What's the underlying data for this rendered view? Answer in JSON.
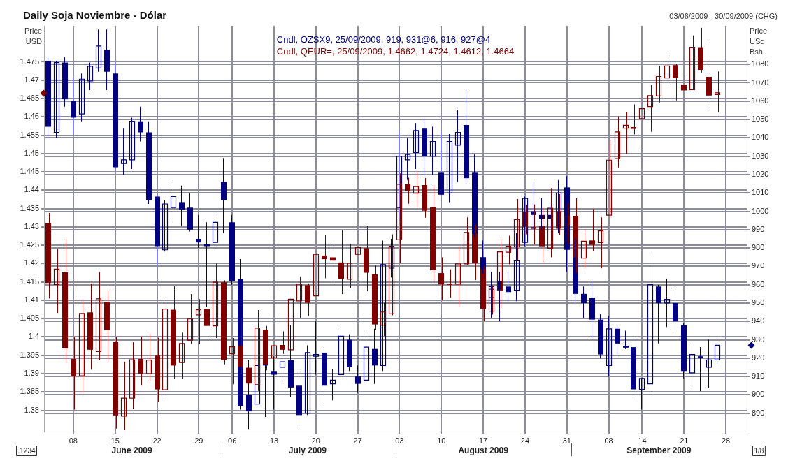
{
  "chart_data": {
    "type": "candlestick",
    "title": "Daily Soja Noviembre - Dólar",
    "subtitle": "03/06/2009 - 30/09/2009 (CHG)",
    "ylabel": "Price USD",
    "y2label": "Price USc Bsh",
    "categories": [
      null,
      null,
      null,
      "08",
      null,
      null,
      null,
      null,
      "15",
      null,
      null,
      null,
      null,
      "22",
      null,
      null,
      null,
      null,
      "29",
      null,
      null,
      null,
      "06",
      null,
      null,
      null,
      null,
      "13",
      null,
      null,
      null,
      null,
      "20",
      null,
      null,
      null,
      null,
      "27",
      null,
      null,
      null,
      null,
      "03",
      null,
      null,
      null,
      null,
      "10",
      null,
      null,
      null,
      null,
      "17",
      null,
      null,
      null,
      null,
      "24",
      null,
      null,
      null,
      null,
      "31",
      null,
      null,
      null,
      null,
      "08",
      null,
      null,
      null,
      "14",
      null,
      null,
      null,
      null,
      "21",
      null,
      null,
      null,
      null,
      "28",
      null,
      null
    ],
    "series": [
      {
        "name": "Cndl, OZSX9, 25/09/2009, 919, 931@6, 916, 927@4",
        "color": "#000080",
        "axis": "y2",
        "ohlc": [
          [
            1082,
            1084,
            1040,
            1046
          ],
          [
            1043,
            1082,
            1040,
            1081
          ],
          [
            1081,
            1084,
            1057,
            1061
          ],
          [
            1060,
            1073,
            1042,
            1051
          ],
          [
            1053,
            1075,
            1049,
            1072
          ],
          [
            1071,
            1081,
            1066,
            1079
          ],
          [
            1078,
            1099,
            1076,
            1090
          ],
          [
            1088,
            1099,
            1066,
            1076
          ],
          [
            1075,
            1081,
            1023,
            1024
          ],
          [
            1026,
            1045,
            1020,
            1028
          ],
          [
            1028,
            1051,
            1023,
            1049
          ],
          [
            1049,
            1057,
            1038,
            1043
          ],
          [
            1043,
            1049,
            1004,
            1006
          ],
          [
            1008,
            1009,
            970,
            981
          ],
          [
            979,
            1006,
            978,
            1004
          ],
          [
            1002,
            1017,
            995,
            1008
          ],
          [
            1005,
            1014,
            992,
            1001
          ],
          [
            1002,
            1010,
            989,
            990
          ],
          [
            985,
            998,
            980,
            983
          ],
          [
            982,
            994,
            948,
            981
          ],
          [
            983,
            997,
            981,
            994
          ],
          [
            1016,
            1029,
            988,
            1006
          ],
          [
            994,
            998,
            960,
            962
          ],
          [
            963,
            974,
            892,
            894
          ],
          [
            900,
            919,
            881,
            891
          ],
          [
            895,
            918,
            893,
            916
          ],
          [
            917,
            934,
            888,
            916
          ],
          [
            913,
            921,
            892,
            911
          ],
          [
            915,
            922,
            906,
            918
          ],
          [
            919,
            938,
            899,
            904
          ],
          [
            905,
            913,
            882,
            889
          ],
          [
            890,
            927,
            889,
            923
          ],
          [
            921,
            940,
            911,
            922
          ],
          [
            923,
            926,
            895,
            905
          ],
          [
            906,
            914,
            897,
            908
          ],
          [
            911,
            936,
            910,
            932
          ],
          [
            930,
            933,
            913,
            915
          ],
          [
            910,
            916,
            901,
            906
          ],
          [
            908,
            933,
            906,
            926
          ],
          [
            925,
            936,
            906,
            916
          ],
          [
            916,
            984,
            913,
            971
          ],
          [
            969,
            985,
            964,
            981
          ],
          [
            1002,
            1043,
            996,
            1030
          ],
          [
            1028,
            1040,
            1017,
            1031
          ],
          [
            1032,
            1048,
            1023,
            1044
          ],
          [
            1045,
            1050,
            1019,
            1030
          ],
          [
            1030,
            1046,
            1020,
            1038
          ],
          [
            1021,
            1043,
            1008,
            1009
          ],
          [
            1010,
            1042,
            1005,
            1038
          ],
          [
            1036,
            1055,
            1016,
            1043
          ],
          [
            1047,
            1066,
            1015,
            1018
          ],
          [
            1021,
            1031,
            986,
            987
          ],
          [
            975,
            984,
            966,
            968
          ],
          [
            953,
            967,
            942,
            959
          ],
          [
            962,
            967,
            940,
            957
          ],
          [
            959,
            968,
            951,
            956
          ],
          [
            957,
            988,
            951,
            973
          ],
          [
            983,
            1008,
            981,
            1007
          ],
          [
            1000,
            1016,
            990,
            998
          ],
          [
            998,
            1007,
            990,
            996
          ],
          [
            998,
            1004,
            990,
            996
          ],
          [
            999,
            1017,
            988,
            1010
          ],
          [
            1013,
            1019,
            967,
            979
          ],
          [
            980,
            985,
            950,
            955
          ],
          [
            955,
            959,
            942,
            950
          ],
          [
            953,
            962,
            931,
            941
          ],
          [
            941,
            944,
            920,
            922
          ],
          [
            916,
            943,
            910,
            936
          ],
          [
            936,
            938,
            922,
            928
          ],
          [
            926.5,
            935,
            925,
            926
          ],
          [
            926,
            932,
            897,
            903
          ],
          [
            903,
            909,
            892,
            909
          ],
          [
            906,
            978,
            901,
            960
          ],
          [
            959,
            960,
            928,
            950
          ],
          [
            950,
            963,
            937,
            952
          ],
          [
            950,
            958,
            935,
            940
          ],
          [
            938,
            939,
            909,
            913
          ],
          [
            912,
            927,
            903,
            922
          ],
          [
            921,
            926,
            902,
            920
          ],
          [
            915,
            930,
            904,
            919
          ],
          [
            919,
            931,
            916,
            927
          ],
          null,
          null,
          null
        ]
      },
      {
        "name": "Cndl, QEUR=, 25/09/2009, 1.4662, 1.4724, 1.4612, 1.4664",
        "color": "#800000",
        "ohlc": [
          [
            1.431,
            1.4338,
            1.4105,
            1.4147
          ],
          [
            1.4143,
            1.424,
            1.4065,
            1.4185
          ],
          [
            1.4176,
            1.4267,
            1.3929,
            1.3969
          ],
          [
            1.394,
            1.4,
            1.3802,
            1.3893
          ],
          [
            1.3894,
            1.41,
            1.3848,
            1.4064
          ],
          [
            1.4067,
            1.4145,
            1.3911,
            1.3965
          ],
          [
            1.396,
            1.4177,
            1.3938,
            1.4104
          ],
          [
            1.4095,
            1.4128,
            1.3933,
            1.4019
          ],
          [
            1.3987,
            1.4,
            1.375,
            1.3786
          ],
          [
            1.3784,
            1.3932,
            1.3746,
            1.3833
          ],
          [
            1.3833,
            1.3986,
            1.3803,
            1.3938
          ],
          [
            1.394,
            1.4,
            1.3867,
            1.39
          ],
          [
            1.39,
            1.401,
            1.388,
            1.3937
          ],
          [
            1.3949,
            1.3998,
            1.3822,
            1.3857
          ],
          [
            1.3856,
            1.4106,
            1.3826,
            1.4076
          ],
          [
            1.4074,
            1.4138,
            1.3885,
            1.3922
          ],
          [
            1.393,
            1.4012,
            1.3885,
            1.3982
          ],
          [
            1.3991,
            1.4117,
            1.3981,
            1.4049
          ],
          [
            1.406,
            1.4103,
            1.398,
            1.4074
          ],
          [
            1.4076,
            1.4151,
            1.3997,
            1.403
          ],
          [
            1.403,
            1.42,
            1.3997,
            1.4149
          ],
          [
            1.4149,
            1.4154,
            1.3925,
            1.3937
          ],
          [
            1.3954,
            1.3997,
            1.3871,
            1.3973
          ],
          [
            1.3976,
            1.405,
            1.3898,
            1.3918
          ],
          [
            1.3916,
            1.3938,
            1.383,
            1.3873
          ],
          [
            1.387,
            1.4073,
            1.3853,
            1.4024
          ],
          [
            1.402,
            1.403,
            1.3909,
            1.3925
          ],
          [
            1.3943,
            1.4,
            1.3934,
            1.3976
          ],
          [
            1.3978,
            1.4015,
            1.3954,
            1.3965
          ],
          [
            1.3965,
            1.4135,
            1.3963,
            1.4103
          ],
          [
            1.4098,
            1.4164,
            1.4052,
            1.4144
          ],
          [
            1.4141,
            1.4145,
            1.4057,
            1.4093
          ],
          [
            1.4112,
            1.4247,
            1.4105,
            1.4225
          ],
          [
            1.4222,
            1.4279,
            1.416,
            1.4212
          ],
          [
            1.4217,
            1.4257,
            1.4151,
            1.4208
          ],
          [
            1.4203,
            1.4292,
            1.4117,
            1.4158
          ],
          [
            1.4157,
            1.4253,
            1.4133,
            1.4201
          ],
          [
            1.4225,
            1.4299,
            1.4169,
            1.4244
          ],
          [
            1.4242,
            1.4303,
            1.4125,
            1.4175
          ],
          [
            1.4171,
            1.4195,
            1.402,
            1.4034
          ],
          [
            1.4032,
            1.4093,
            1.4003,
            1.4068
          ],
          [
            1.4063,
            1.428,
            1.4059,
            1.4246
          ],
          [
            1.4265,
            1.4446,
            1.4202,
            1.4416
          ],
          [
            1.4416,
            1.4434,
            1.4363,
            1.4398
          ],
          [
            1.4392,
            1.4448,
            1.4354,
            1.441
          ],
          [
            1.4414,
            1.4433,
            1.4325,
            1.4344
          ],
          [
            1.4354,
            1.4414,
            1.4151,
            1.4182
          ],
          [
            1.4174,
            1.4217,
            1.41,
            1.4143
          ],
          [
            1.4145,
            1.4184,
            1.4107,
            1.4142
          ],
          [
            1.4144,
            1.4247,
            1.4081,
            1.4199
          ],
          [
            1.4199,
            1.4326,
            1.4196,
            1.4285
          ],
          [
            1.4281,
            1.4306,
            1.4155,
            1.4201
          ],
          [
            1.4185,
            1.4193,
            1.4043,
            1.4076
          ],
          [
            1.407,
            1.4141,
            1.4061,
            1.413
          ],
          [
            1.4128,
            1.4267,
            1.4079,
            1.4232
          ],
          [
            1.4231,
            1.4276,
            1.4198,
            1.4247
          ],
          [
            1.4246,
            1.4376,
            1.4208,
            1.432
          ],
          [
            1.4341,
            1.436,
            1.428,
            1.43
          ],
          [
            1.4298,
            1.4361,
            1.4252,
            1.4296
          ],
          [
            1.4302,
            1.4351,
            1.4204,
            1.4247
          ],
          [
            1.4242,
            1.4406,
            1.4217,
            1.4351
          ],
          [
            1.4343,
            1.4389,
            1.4279,
            1.4295
          ],
          [
            1.4305,
            1.4365,
            1.4252,
            1.4328
          ],
          [
            1.433,
            1.4378,
            1.4174,
            1.4216
          ],
          [
            1.4215,
            1.4293,
            1.4187,
            1.4261
          ],
          [
            1.4263,
            1.4349,
            1.4233,
            1.4251
          ],
          [
            1.4257,
            1.4326,
            1.4187,
            1.4289
          ],
          [
            1.4332,
            1.4536,
            1.4325,
            1.4482
          ],
          [
            1.4486,
            1.4601,
            1.4462,
            1.4559
          ],
          [
            1.4569,
            1.4614,
            1.4499,
            1.4577
          ],
          [
            1.4572,
            1.4634,
            1.4552,
            1.4567
          ],
          [
            1.4595,
            1.4653,
            1.4512,
            1.4622
          ],
          [
            1.4628,
            1.4687,
            1.4559,
            1.4658
          ],
          [
            1.4657,
            1.4739,
            1.4639,
            1.471
          ],
          [
            1.4706,
            1.4767,
            1.4685,
            1.4739
          ],
          [
            1.4741,
            1.4745,
            1.4645,
            1.4706
          ],
          [
            1.4688,
            1.4714,
            1.4604,
            1.4672
          ],
          [
            1.4674,
            1.4822,
            1.4674,
            1.4788
          ],
          [
            1.4788,
            1.4843,
            1.4721,
            1.4728
          ],
          [
            1.4709,
            1.4805,
            1.4625,
            1.4658
          ],
          [
            1.4662,
            1.4724,
            1.4612,
            1.4664
          ],
          null,
          null,
          null
        ]
      }
    ],
    "ylim": [
      1.3742,
      1.4848
    ],
    "yticks": [
      1.38,
      1.385,
      1.39,
      1.395,
      1.4,
      1.405,
      1.41,
      1.415,
      1.42,
      1.425,
      1.43,
      1.435,
      1.44,
      1.445,
      1.45,
      1.455,
      1.46,
      1.465,
      1.47,
      1.475
    ],
    "y2lim": [
      880,
      1101
    ],
    "y2ticks": [
      890,
      900,
      910,
      920,
      930,
      940,
      950,
      960,
      970,
      980,
      990,
      1000,
      1010,
      1020,
      1030,
      1040,
      1050,
      1060,
      1070,
      1080
    ],
    "grid": true,
    "legend": "top",
    "annotations": [
      "June 2009",
      "July 2009",
      "August 2009",
      "September 2009",
      ".1234",
      "1/8"
    ]
  }
}
